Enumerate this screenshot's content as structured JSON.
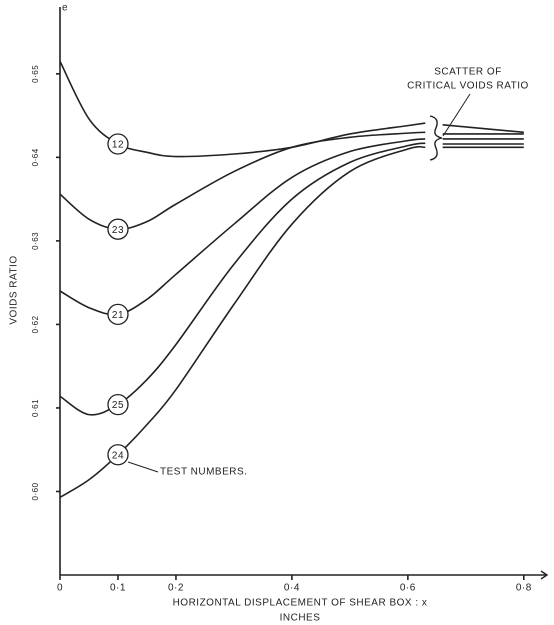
{
  "chart_data": {
    "type": "line",
    "ylabel": "VOIDS RATIO",
    "ysymbol": "e",
    "xlabel": "HORIZONTAL DISPLACEMENT OF SHEAR BOX : x",
    "xlabel_unit": "INCHES",
    "annotations": [
      "SCATTER OF",
      "CRITICAL VOIDS RATIO",
      "TEST NUMBERS."
    ],
    "x": [
      0,
      0.05,
      0.1,
      0.15,
      0.2,
      0.3,
      0.4,
      0.5,
      0.6,
      0.63,
      0.645,
      0.66,
      0.8
    ],
    "series": [
      {
        "name": "12",
        "color": "#222222",
        "values": [
          0.6515,
          0.6446,
          0.6416,
          0.6406,
          0.6401,
          0.6404,
          0.6412,
          0.6428,
          0.6438,
          0.6441,
          null,
          0.6439,
          0.643
        ]
      },
      {
        "name": "23",
        "color": "#222222",
        "values": [
          0.6356,
          0.6326,
          0.6314,
          0.6323,
          0.6344,
          0.6383,
          0.6412,
          0.6424,
          0.6429,
          0.643,
          null,
          0.6428,
          0.6428
        ]
      },
      {
        "name": "21",
        "color": "#222222",
        "values": [
          0.624,
          0.622,
          0.6212,
          0.623,
          0.626,
          0.632,
          0.6376,
          0.6407,
          0.642,
          0.6422,
          null,
          0.6422,
          0.6422
        ]
      },
      {
        "name": "25",
        "color": "#222222",
        "values": [
          0.6114,
          0.6092,
          0.6104,
          0.6134,
          0.6176,
          0.6272,
          0.635,
          0.6394,
          0.6414,
          0.6417,
          null,
          0.6416,
          0.6416
        ]
      },
      {
        "name": "24",
        "color": "#222222",
        "values": [
          0.5993,
          0.6014,
          0.6044,
          0.608,
          0.6122,
          0.6224,
          0.632,
          0.6383,
          0.641,
          0.6412,
          null,
          0.6412,
          0.6412
        ]
      }
    ],
    "xlim": [
      0,
      0.84
    ],
    "ylim": [
      0.59,
      0.658
    ],
    "xticks": [
      0,
      {
        "value": 0.1,
        "label": "0·1"
      },
      {
        "value": 0.2,
        "label": "0·2"
      },
      {
        "value": 0.4,
        "label": "0·4"
      },
      {
        "value": 0.6,
        "label": "0·6"
      },
      {
        "value": 0.8,
        "label": "0·8"
      }
    ],
    "yticks": [
      {
        "value": 0.6,
        "label": "0·60"
      },
      {
        "value": 0.61,
        "label": "0·61"
      },
      {
        "value": 0.62,
        "label": "0·62"
      },
      {
        "value": 0.63,
        "label": "0·63"
      },
      {
        "value": 0.64,
        "label": "0·64"
      },
      {
        "value": 0.65,
        "label": "0·65"
      }
    ],
    "grid": false
  }
}
